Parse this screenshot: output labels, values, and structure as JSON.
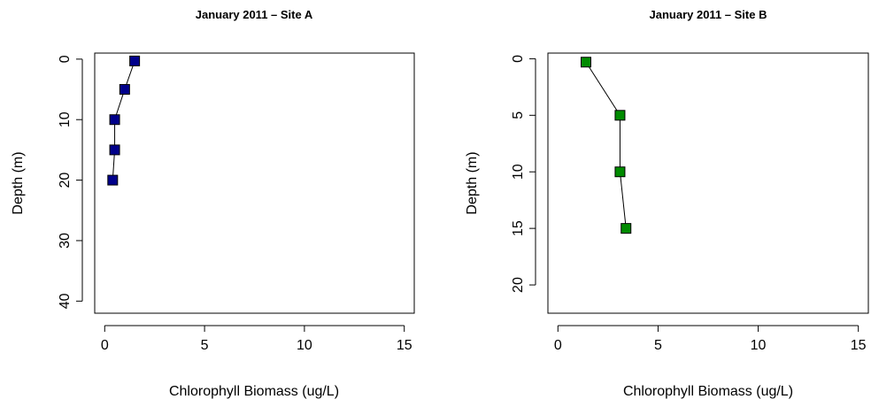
{
  "chart_data": [
    {
      "type": "line",
      "title": "January 2011 – Site A",
      "xlabel": "Chlorophyll Biomass (ug/L)",
      "ylabel": "Depth (m)",
      "xlim": [
        -0.5,
        15.5
      ],
      "ylim": [
        42,
        -1
      ],
      "y_reversed": true,
      "grid": false,
      "legend": "none",
      "xticks": [
        "0",
        "5",
        "10",
        "15"
      ],
      "yticks": [
        "0",
        "10",
        "20",
        "30",
        "40"
      ],
      "marker": "filled-square",
      "marker_color": "#00008b",
      "series": [
        {
          "x": [
            1.5,
            1.0,
            0.5,
            0.5,
            0.4
          ],
          "y": [
            0.3,
            5,
            10,
            15,
            20
          ]
        }
      ]
    },
    {
      "type": "line",
      "title": "January 2011 – Site B",
      "xlabel": "Chlorophyll Biomass (ug/L)",
      "ylabel": "Depth (m)",
      "xlim": [
        -0.5,
        15.5
      ],
      "ylim": [
        22.5,
        -0.5
      ],
      "y_reversed": true,
      "grid": false,
      "legend": "none",
      "xticks": [
        "0",
        "5",
        "10",
        "15"
      ],
      "yticks": [
        "0",
        "5",
        "10",
        "15",
        "20"
      ],
      "marker": "filled-square",
      "marker_color": "#008b00",
      "series": [
        {
          "x": [
            1.4,
            3.1,
            3.1,
            3.4
          ],
          "y": [
            0.3,
            5,
            10,
            15
          ]
        }
      ]
    }
  ]
}
